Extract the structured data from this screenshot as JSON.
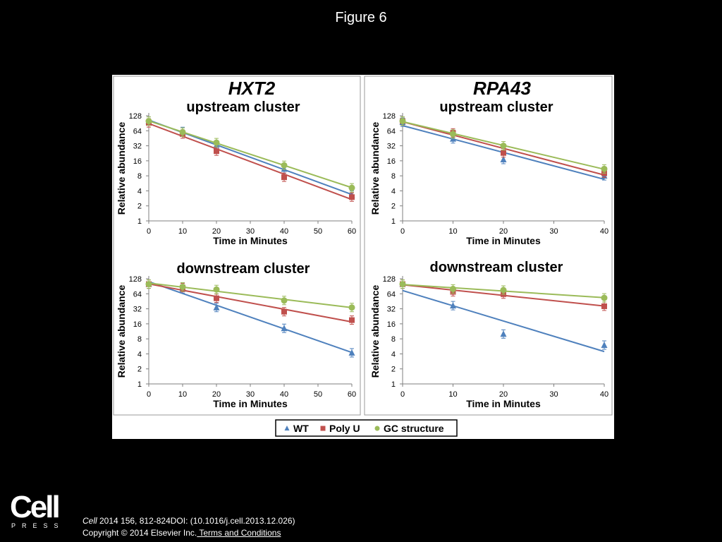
{
  "slide": {
    "title": "Figure 6",
    "logo_text": "Cell",
    "logo_subtext": "PRESS",
    "citation_journal": "Cell",
    "citation_rest": " 2014 156, 812-824DOI: (10.1016/j.cell.2013.12.026)",
    "copyright": "Copyright © 2014 Elsevier Inc.",
    "terms_link": " Terms and Conditions"
  },
  "colors": {
    "WT": "#4f81bd",
    "Poly U": "#c0504d",
    "GC structure": "#9bbb59"
  },
  "legend": [
    "WT",
    "Poly U",
    "GC structure"
  ],
  "chart_data": [
    {
      "type": "line",
      "gene": "HXT2",
      "title": "upstream cluster",
      "xlabel": "Time in Minutes",
      "ylabel": "Relative abundance",
      "yscale": "log2",
      "xlim": [
        0,
        60
      ],
      "ylim": [
        1,
        128
      ],
      "xticks": [
        0,
        10,
        20,
        30,
        40,
        50,
        60
      ],
      "yticks": [
        1,
        2,
        4,
        8,
        16,
        32,
        64,
        128
      ],
      "x": [
        0,
        10,
        20,
        40,
        60
      ],
      "series": [
        {
          "name": "WT",
          "values": [
            100,
            62,
            33,
            11,
            3.3
          ]
        },
        {
          "name": "Poly U",
          "values": [
            92,
            55,
            25,
            7.5,
            3.0
          ]
        },
        {
          "name": "GC structure",
          "values": [
            100,
            60,
            37,
            13,
            4.6
          ]
        }
      ]
    },
    {
      "type": "line",
      "gene": "RPA43",
      "title": "upstream cluster",
      "xlabel": "Time in Minutes",
      "ylabel": "Relative abundance",
      "yscale": "log2",
      "xlim": [
        0,
        40
      ],
      "ylim": [
        1,
        128
      ],
      "xticks": [
        0,
        10,
        20,
        30,
        40
      ],
      "yticks": [
        1,
        2,
        4,
        8,
        16,
        32,
        64,
        128
      ],
      "x": [
        0,
        10,
        20,
        40
      ],
      "series": [
        {
          "name": "WT",
          "values": [
            95,
            44,
            17,
            8.0
          ]
        },
        {
          "name": "Poly U",
          "values": [
            100,
            58,
            23,
            9.0
          ]
        },
        {
          "name": "GC structure",
          "values": [
            100,
            55,
            32,
            11
          ]
        }
      ]
    },
    {
      "type": "line",
      "title": "downstream cluster",
      "xlabel": "Time in Minutes",
      "ylabel": "Relative abundance",
      "yscale": "log2",
      "xlim": [
        0,
        60
      ],
      "ylim": [
        1,
        128
      ],
      "xticks": [
        0,
        10,
        20,
        30,
        40,
        50,
        60
      ],
      "yticks": [
        1,
        2,
        4,
        8,
        16,
        32,
        64,
        128
      ],
      "x": [
        0,
        10,
        20,
        40,
        60
      ],
      "series": [
        {
          "name": "WT",
          "values": [
            100,
            80,
            34,
            13,
            4.2
          ]
        },
        {
          "name": "Poly U",
          "values": [
            100,
            85,
            52,
            28,
            19
          ]
        },
        {
          "name": "GC structure",
          "values": [
            100,
            88,
            78,
            47,
            34
          ]
        }
      ]
    },
    {
      "type": "line",
      "title": "downstream cluster",
      "xlabel": "Time in Minutes",
      "ylabel": "Relative abundance",
      "yscale": "log2",
      "xlim": [
        0,
        40
      ],
      "ylim": [
        1,
        128
      ],
      "xticks": [
        0,
        10,
        20,
        30,
        40
      ],
      "yticks": [
        1,
        2,
        4,
        8,
        16,
        32,
        64,
        128
      ],
      "x": [
        0,
        10,
        20,
        40
      ],
      "series": [
        {
          "name": "WT",
          "values": [
            100,
            37,
            10,
            6.0
          ]
        },
        {
          "name": "Poly U",
          "values": [
            100,
            70,
            63,
            36
          ]
        },
        {
          "name": "GC structure",
          "values": [
            100,
            80,
            76,
            53
          ]
        }
      ]
    }
  ]
}
